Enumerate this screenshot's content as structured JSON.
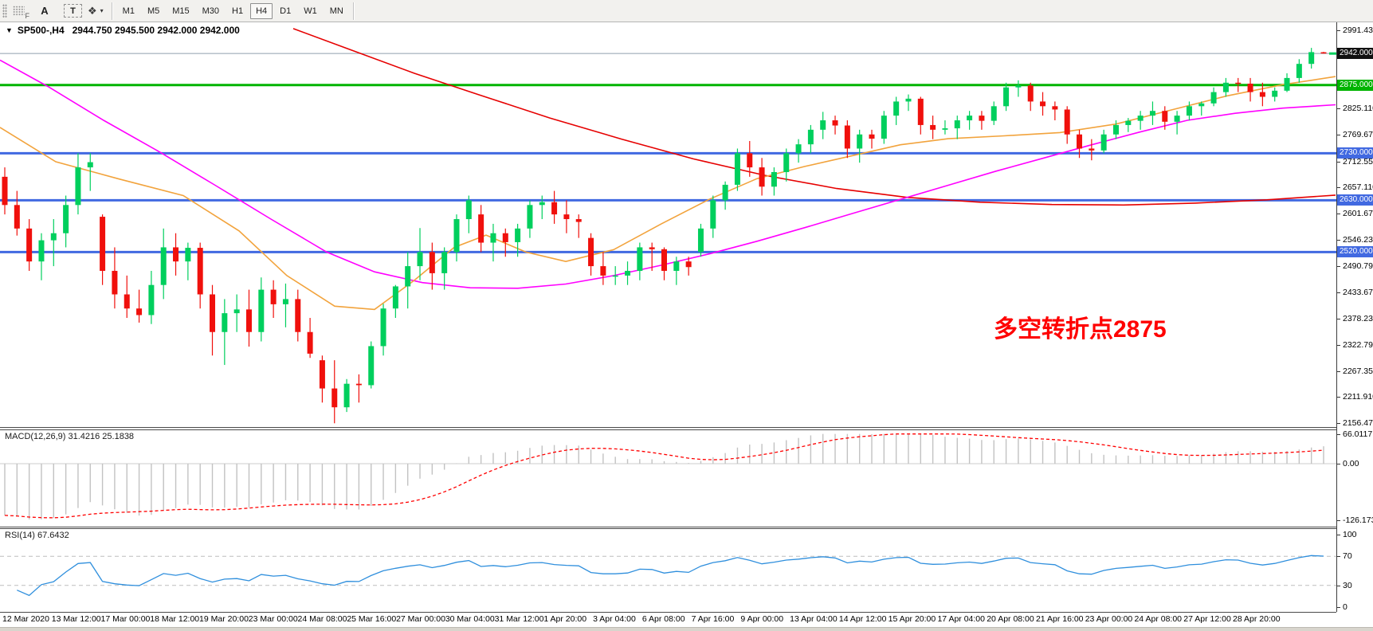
{
  "toolbar": {
    "f_label": "F",
    "text_tool": "A",
    "textbox_tool": "T",
    "cursor_tool_glyph": "❖",
    "cursor_caret": "▾",
    "timeframes": [
      "M1",
      "M5",
      "M15",
      "M30",
      "H1",
      "H4",
      "D1",
      "W1",
      "MN"
    ],
    "active_timeframe": "H4"
  },
  "chart_data": {
    "type": "candlestick",
    "symbol_period": "SP500-,H4",
    "ohlc_text": "2944.750 2945.500 2942.000 2942.000",
    "dropdown_arrow": "▼",
    "annotation": {
      "text": "多空转折点2875",
      "color": "#ff0000"
    },
    "y_axis": {
      "min": 2156.47,
      "max": 2991.43,
      "ticks": [
        {
          "label": "2991.430",
          "price": 2991.43
        },
        {
          "label": "2942.000",
          "price": 2942.0,
          "badge": "#111111"
        },
        {
          "label": "2875.000",
          "price": 2875.0,
          "badge": "#00b400"
        },
        {
          "label": "2825.110",
          "price": 2825.11
        },
        {
          "label": "2769.670",
          "price": 2769.67
        },
        {
          "label": "2730.000",
          "price": 2730.0,
          "badge": "#4169e1"
        },
        {
          "label": "2712.550",
          "price": 2712.55
        },
        {
          "label": "2657.110",
          "price": 2657.11
        },
        {
          "label": "2630.000",
          "price": 2630.0,
          "badge": "#4169e1"
        },
        {
          "label": "2601.670",
          "price": 2601.67
        },
        {
          "label": "2546.230",
          "price": 2546.23
        },
        {
          "label": "2520.000",
          "price": 2520.0,
          "badge": "#4169e1"
        },
        {
          "label": "2490.790",
          "price": 2490.79
        },
        {
          "label": "2433.670",
          "price": 2433.67
        },
        {
          "label": "2378.230",
          "price": 2378.23
        },
        {
          "label": "2322.790",
          "price": 2322.79
        },
        {
          "label": "2267.350",
          "price": 2267.35
        },
        {
          "label": "2211.910",
          "price": 2211.91
        },
        {
          "label": "2156.470",
          "price": 2156.47
        }
      ]
    },
    "levels": [
      {
        "price": 2942.0,
        "color": "#8f9fae",
        "width": 1
      },
      {
        "price": 2875.0,
        "color": "#00b400",
        "width": 3
      },
      {
        "price": 2730.0,
        "color": "#4169e1",
        "width": 3
      },
      {
        "price": 2630.0,
        "color": "#4169e1",
        "width": 3
      },
      {
        "price": 2520.0,
        "color": "#4169e1",
        "width": 3
      }
    ],
    "candles": [
      [
        2680,
        2700,
        2600,
        2620
      ],
      [
        2620,
        2650,
        2555,
        2570
      ],
      [
        2570,
        2590,
        2480,
        2500
      ],
      [
        2500,
        2560,
        2460,
        2545
      ],
      [
        2545,
        2590,
        2490,
        2560
      ],
      [
        2560,
        2640,
        2530,
        2620
      ],
      [
        2620,
        2730,
        2600,
        2700
      ],
      [
        2700,
        2730,
        2650,
        2711
      ],
      [
        2595,
        2600,
        2450,
        2480
      ],
      [
        2480,
        2530,
        2400,
        2430
      ],
      [
        2430,
        2470,
        2380,
        2400
      ],
      [
        2400,
        2440,
        2370,
        2386
      ],
      [
        2386,
        2480,
        2367,
        2450
      ],
      [
        2450,
        2570,
        2420,
        2530
      ],
      [
        2530,
        2560,
        2470,
        2500
      ],
      [
        2500,
        2540,
        2460,
        2529
      ],
      [
        2529,
        2540,
        2400,
        2430
      ],
      [
        2430,
        2450,
        2300,
        2350
      ],
      [
        2350,
        2420,
        2280,
        2390
      ],
      [
        2390,
        2430,
        2350,
        2398
      ],
      [
        2398,
        2440,
        2319,
        2350
      ],
      [
        2350,
        2466,
        2330,
        2440
      ],
      [
        2440,
        2460,
        2380,
        2409
      ],
      [
        2409,
        2453,
        2360,
        2420
      ],
      [
        2420,
        2440,
        2330,
        2350
      ],
      [
        2350,
        2380,
        2295,
        2304
      ],
      [
        2290,
        2300,
        2200,
        2230
      ],
      [
        2230,
        2290,
        2156,
        2190
      ],
      [
        2190,
        2250,
        2180,
        2240
      ],
      [
        2240,
        2260,
        2200,
        2237
      ],
      [
        2237,
        2330,
        2230,
        2320
      ],
      [
        2320,
        2410,
        2300,
        2400
      ],
      [
        2400,
        2450,
        2380,
        2447
      ],
      [
        2447,
        2520,
        2400,
        2490
      ],
      [
        2490,
        2571,
        2460,
        2520
      ],
      [
        2520,
        2540,
        2440,
        2475
      ],
      [
        2475,
        2530,
        2440,
        2520
      ],
      [
        2520,
        2600,
        2500,
        2590
      ],
      [
        2590,
        2640,
        2560,
        2630
      ],
      [
        2600,
        2620,
        2520,
        2540
      ],
      [
        2540,
        2580,
        2500,
        2560
      ],
      [
        2560,
        2570,
        2510,
        2541
      ],
      [
        2541,
        2580,
        2510,
        2570
      ],
      [
        2570,
        2630,
        2550,
        2620
      ],
      [
        2620,
        2640,
        2590,
        2626
      ],
      [
        2626,
        2650,
        2580,
        2600
      ],
      [
        2600,
        2630,
        2560,
        2590
      ],
      [
        2590,
        2600,
        2550,
        2584
      ],
      [
        2550,
        2560,
        2470,
        2490
      ],
      [
        2490,
        2520,
        2450,
        2470
      ],
      [
        2470,
        2490,
        2450,
        2470
      ],
      [
        2470,
        2500,
        2450,
        2480
      ],
      [
        2480,
        2540,
        2460,
        2530
      ],
      [
        2530,
        2540,
        2480,
        2526
      ],
      [
        2526,
        2530,
        2460,
        2480
      ],
      [
        2480,
        2510,
        2450,
        2500
      ],
      [
        2500,
        2510,
        2470,
        2488
      ],
      [
        2520,
        2580,
        2510,
        2570
      ],
      [
        2570,
        2640,
        2550,
        2630
      ],
      [
        2630,
        2670,
        2610,
        2663
      ],
      [
        2663,
        2740,
        2650,
        2730
      ],
      [
        2730,
        2756,
        2680,
        2700
      ],
      [
        2700,
        2720,
        2640,
        2659
      ],
      [
        2659,
        2700,
        2640,
        2690
      ],
      [
        2690,
        2740,
        2670,
        2730
      ],
      [
        2730,
        2760,
        2710,
        2749
      ],
      [
        2749,
        2790,
        2730,
        2780
      ],
      [
        2780,
        2818,
        2760,
        2800
      ],
      [
        2800,
        2810,
        2770,
        2789
      ],
      [
        2789,
        2800,
        2720,
        2740
      ],
      [
        2740,
        2780,
        2710,
        2770
      ],
      [
        2770,
        2780,
        2740,
        2761
      ],
      [
        2761,
        2820,
        2750,
        2810
      ],
      [
        2810,
        2850,
        2790,
        2840
      ],
      [
        2840,
        2855,
        2820,
        2846
      ],
      [
        2846,
        2850,
        2770,
        2790
      ],
      [
        2790,
        2810,
        2760,
        2780
      ],
      [
        2780,
        2800,
        2770,
        2783
      ],
      [
        2783,
        2810,
        2760,
        2800
      ],
      [
        2800,
        2820,
        2780,
        2810
      ],
      [
        2810,
        2820,
        2780,
        2799
      ],
      [
        2799,
        2840,
        2790,
        2830
      ],
      [
        2830,
        2880,
        2820,
        2870
      ],
      [
        2870,
        2885,
        2850,
        2874
      ],
      [
        2874,
        2880,
        2820,
        2840
      ],
      [
        2840,
        2860,
        2810,
        2830
      ],
      [
        2830,
        2840,
        2800,
        2823
      ],
      [
        2823,
        2830,
        2750,
        2770
      ],
      [
        2770,
        2780,
        2720,
        2740
      ],
      [
        2740,
        2760,
        2715,
        2736
      ],
      [
        2736,
        2780,
        2730,
        2770
      ],
      [
        2770,
        2800,
        2760,
        2790
      ],
      [
        2790,
        2805,
        2775,
        2799
      ],
      [
        2799,
        2820,
        2780,
        2810
      ],
      [
        2810,
        2840,
        2790,
        2820
      ],
      [
        2820,
        2830,
        2780,
        2797
      ],
      [
        2797,
        2820,
        2770,
        2810
      ],
      [
        2810,
        2840,
        2800,
        2830
      ],
      [
        2830,
        2840,
        2810,
        2836
      ],
      [
        2836,
        2870,
        2830,
        2860
      ],
      [
        2860,
        2890,
        2850,
        2880
      ],
      [
        2880,
        2890,
        2860,
        2878
      ],
      [
        2878,
        2890,
        2840,
        2860
      ],
      [
        2860,
        2880,
        2830,
        2850
      ],
      [
        2850,
        2870,
        2840,
        2863
      ],
      [
        2863,
        2900,
        2860,
        2890
      ],
      [
        2890,
        2930,
        2880,
        2920
      ],
      [
        2920,
        2954,
        2910,
        2945
      ],
      [
        2944.75,
        2945.5,
        2942,
        2942
      ]
    ],
    "moving_averages": {
      "orange": [
        [
          0,
          2785
        ],
        [
          70,
          2712
        ],
        [
          150,
          2675
        ],
        [
          230,
          2640
        ],
        [
          300,
          2565
        ],
        [
          360,
          2470
        ],
        [
          420,
          2405
        ],
        [
          470,
          2398
        ],
        [
          520,
          2460
        ],
        [
          570,
          2530
        ],
        [
          610,
          2556
        ],
        [
          660,
          2520
        ],
        [
          710,
          2500
        ],
        [
          770,
          2525
        ],
        [
          830,
          2580
        ],
        [
          890,
          2632
        ],
        [
          950,
          2676
        ],
        [
          1010,
          2702
        ],
        [
          1070,
          2725
        ],
        [
          1130,
          2748
        ],
        [
          1190,
          2761
        ],
        [
          1260,
          2767
        ],
        [
          1330,
          2774
        ],
        [
          1400,
          2792
        ],
        [
          1470,
          2822
        ],
        [
          1540,
          2852
        ],
        [
          1610,
          2876
        ],
        [
          1676,
          2893
        ]
      ],
      "magenta": [
        [
          0,
          2928
        ],
        [
          60,
          2872
        ],
        [
          130,
          2800
        ],
        [
          200,
          2733
        ],
        [
          270,
          2662
        ],
        [
          340,
          2590
        ],
        [
          410,
          2520
        ],
        [
          470,
          2478
        ],
        [
          530,
          2455
        ],
        [
          590,
          2444
        ],
        [
          650,
          2443
        ],
        [
          710,
          2452
        ],
        [
          770,
          2470
        ],
        [
          830,
          2492
        ],
        [
          890,
          2516
        ],
        [
          950,
          2543
        ],
        [
          1010,
          2572
        ],
        [
          1070,
          2602
        ],
        [
          1130,
          2632
        ],
        [
          1190,
          2662
        ],
        [
          1250,
          2692
        ],
        [
          1310,
          2720
        ],
        [
          1370,
          2748
        ],
        [
          1430,
          2775
        ],
        [
          1490,
          2800
        ],
        [
          1550,
          2815
        ],
        [
          1610,
          2826
        ],
        [
          1676,
          2833
        ]
      ],
      "red": [
        [
          368,
          2995
        ],
        [
          440,
          2950
        ],
        [
          520,
          2900
        ],
        [
          600,
          2855
        ],
        [
          690,
          2805
        ],
        [
          780,
          2760
        ],
        [
          870,
          2718
        ],
        [
          960,
          2683
        ],
        [
          1050,
          2655
        ],
        [
          1140,
          2636
        ],
        [
          1230,
          2626
        ],
        [
          1320,
          2621
        ],
        [
          1410,
          2620
        ],
        [
          1500,
          2624
        ],
        [
          1590,
          2631
        ],
        [
          1676,
          2641
        ]
      ]
    },
    "macd": {
      "label": "MACD(12,26,9) 31.4216 25.1838",
      "main_value": 31.4216,
      "signal_value": 25.1838,
      "seed_fast": 2725,
      "seed_slow": 2840,
      "ticks": [
        {
          "label": "66.0117",
          "value": 66.0117
        },
        {
          "label": "0.00",
          "value": 0
        },
        {
          "label": "-126.173",
          "value": -126.173
        }
      ]
    },
    "rsi": {
      "label": "RSI(14) 67.6432",
      "value": 67.6432,
      "period": 14,
      "dashed_levels": [
        70,
        30
      ],
      "ticks": [
        {
          "label": "100",
          "value": 100
        },
        {
          "label": "70",
          "value": 70
        },
        {
          "label": "30",
          "value": 30
        },
        {
          "label": "0",
          "value": 0
        }
      ]
    },
    "time_axis": {
      "labels": [
        "12 Mar 2020",
        "13 Mar 12:00",
        "17 Mar 00:00",
        "18 Mar 12:00",
        "19 Mar 20:00",
        "23 Mar 00:00",
        "24 Mar 08:00",
        "25 Mar 16:00",
        "27 Mar 00:00",
        "30 Mar 04:00",
        "31 Mar 12:00",
        "1 Apr 20:00",
        "3 Apr 04:00",
        "6 Apr 08:00",
        "7 Apr 16:00",
        "9 Apr 00:00",
        "13 Apr 04:00",
        "14 Apr 12:00",
        "15 Apr 20:00",
        "17 Apr 04:00",
        "20 Apr 08:00",
        "21 Apr 16:00",
        "23 Apr 00:00",
        "24 Apr 08:00",
        "27 Apr 12:00",
        "28 Apr 20:00"
      ]
    },
    "colors": {
      "bull": "#00cf5d",
      "bear": "#f0100c",
      "ma_fast": "#f2a33c",
      "ma_mid": "#ff00ff",
      "ma_slow": "#e60000",
      "macd_hist": "#c2c2c2",
      "macd_signal": "#ff0000",
      "rsi_line": "#2f8fdd",
      "rsi_dash": "#bdbdbd",
      "close_marker": "#00cf5d"
    }
  }
}
